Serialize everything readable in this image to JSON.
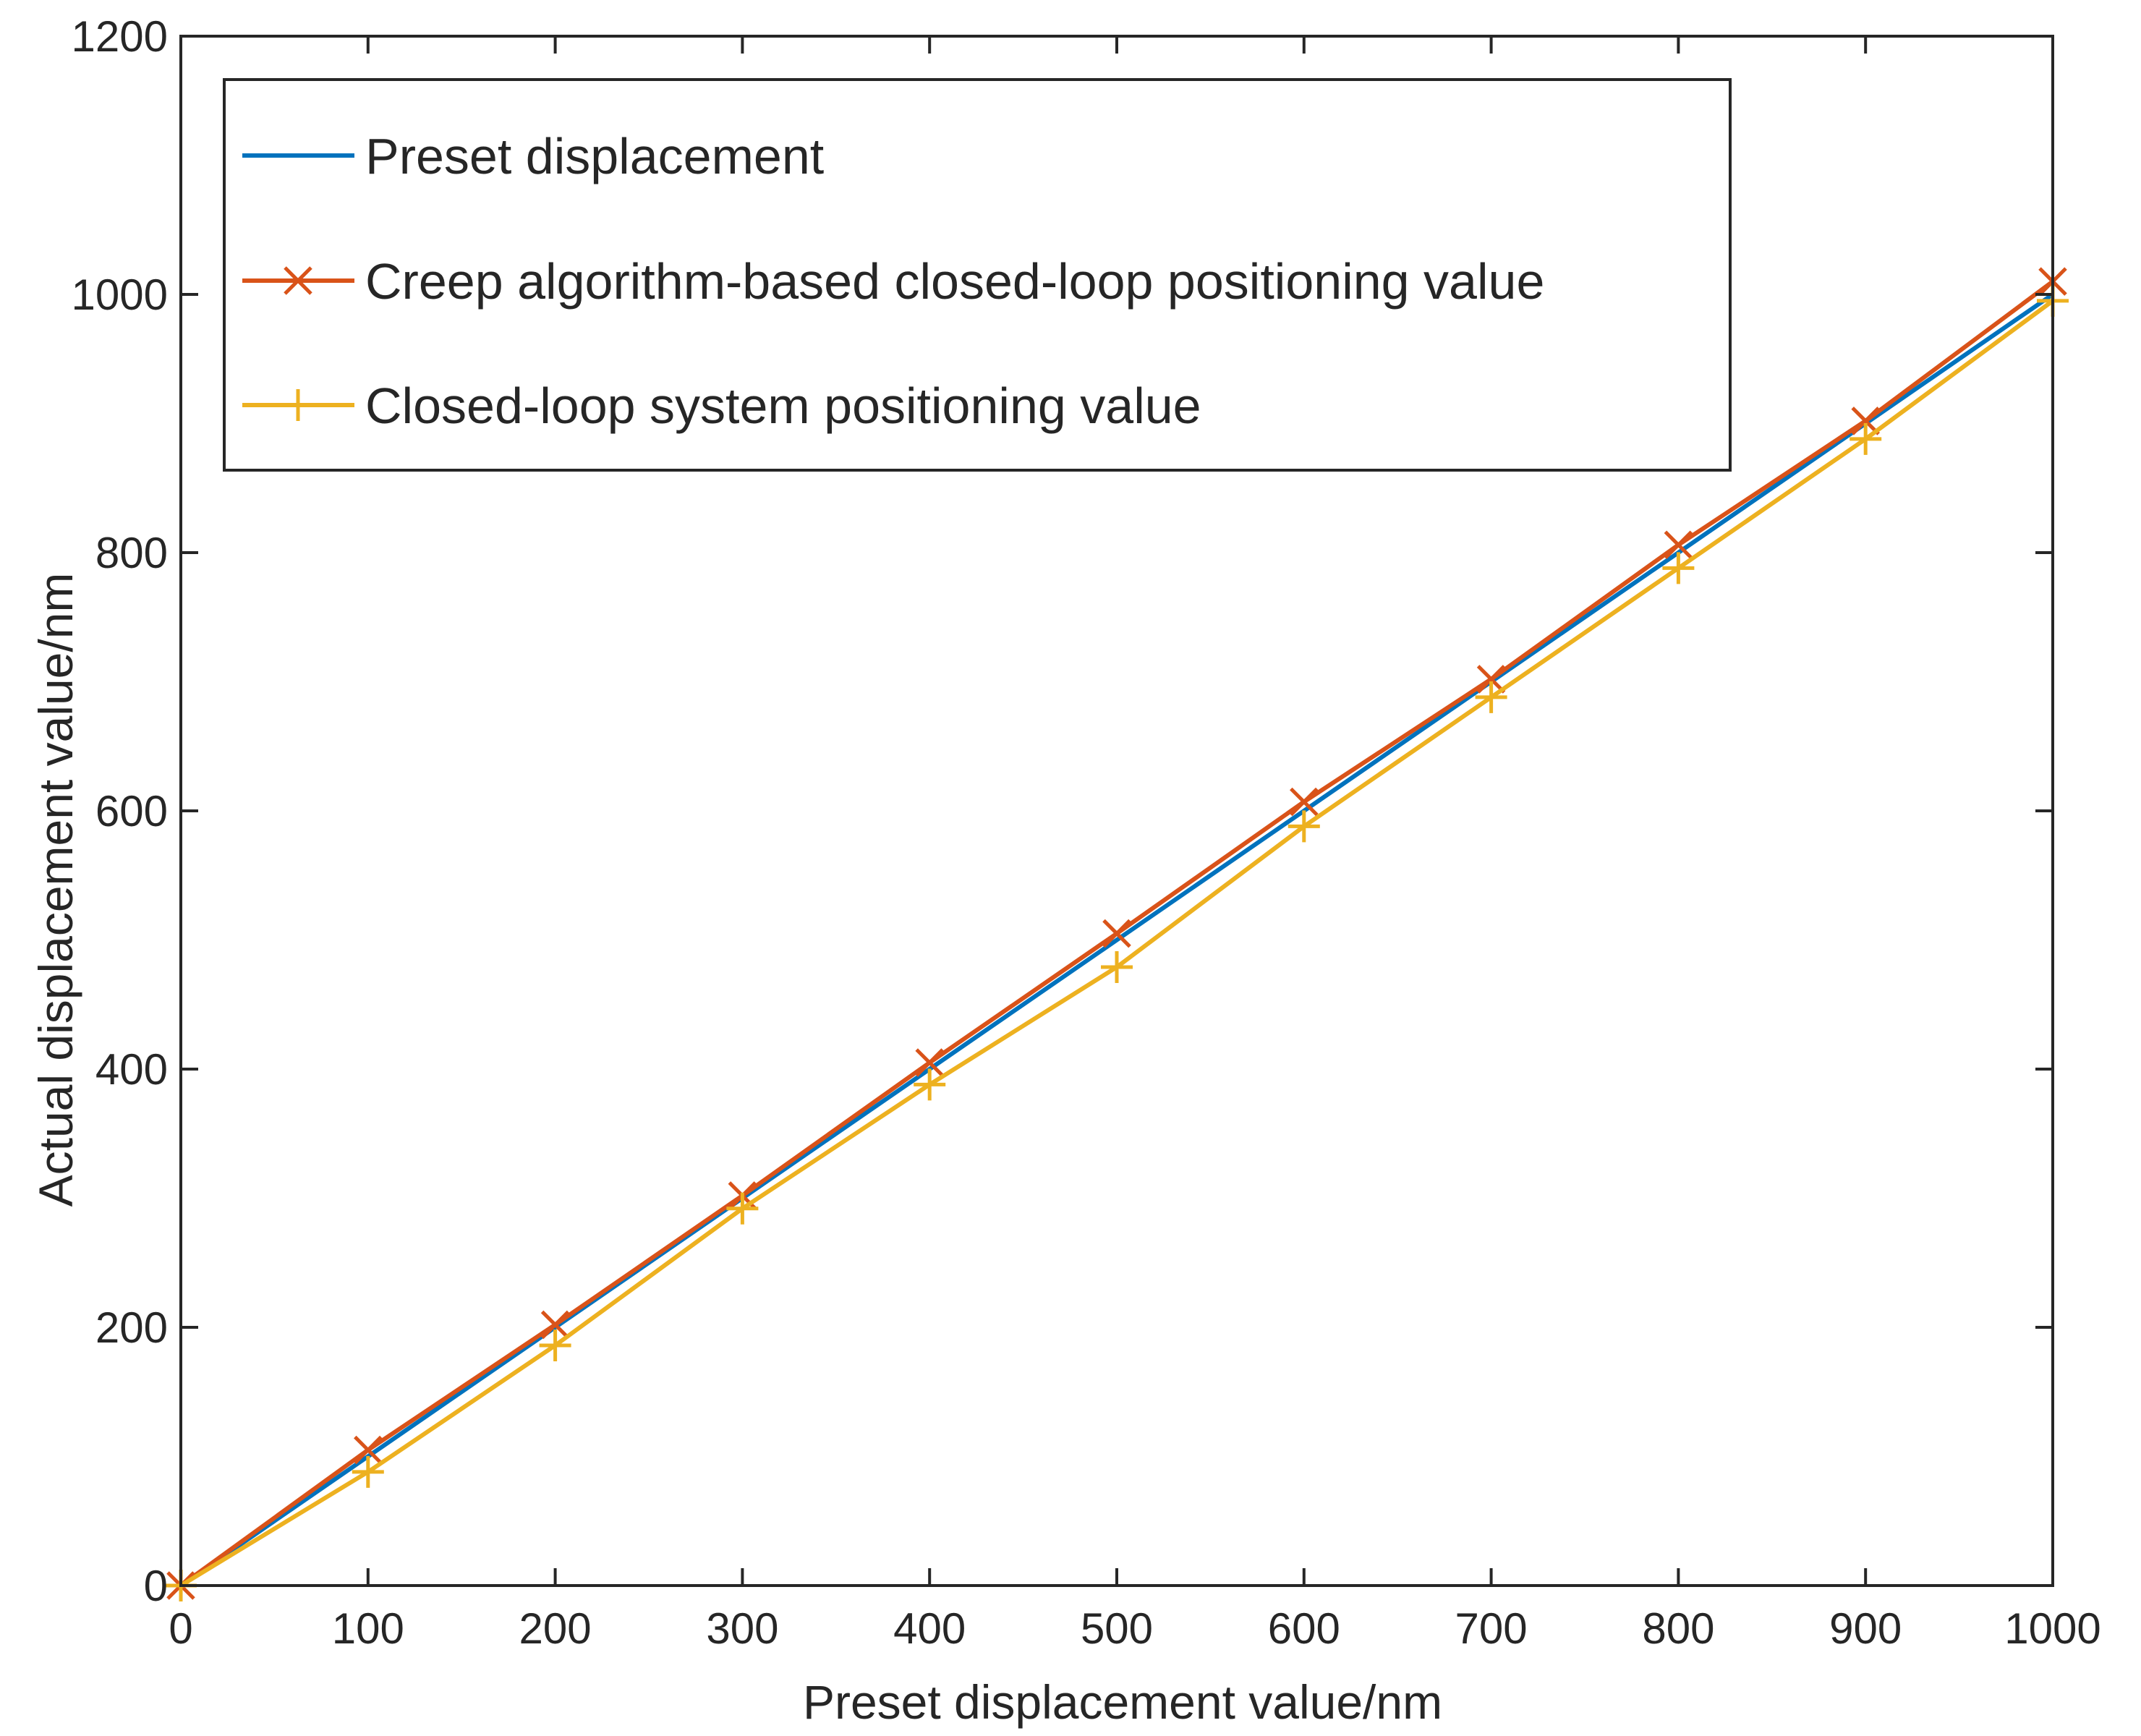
{
  "chart_data": {
    "type": "line",
    "title": "",
    "xlabel": "Preset displacement value/nm",
    "ylabel": "Actual displacement value/nm",
    "xlim": [
      0,
      1000
    ],
    "ylim": [
      0,
      1200
    ],
    "xticks": [
      0,
      100,
      200,
      300,
      400,
      500,
      600,
      700,
      800,
      900,
      1000
    ],
    "yticks": [
      0,
      200,
      400,
      600,
      800,
      1000,
      1200
    ],
    "grid": false,
    "legend_position": "top-left",
    "x": [
      0,
      100,
      200,
      300,
      400,
      500,
      600,
      700,
      800,
      900,
      1000
    ],
    "series": [
      {
        "name": "Preset displacement",
        "color": "#0072BD",
        "marker": "none",
        "values": [
          0,
          100,
          200,
          300,
          400,
          500,
          600,
          700,
          800,
          900,
          1000
        ]
      },
      {
        "name": "Creep algorithm-based closed-loop positioning value",
        "color": "#D95319",
        "marker": "x",
        "values": [
          0,
          105,
          202,
          302,
          405,
          505,
          607,
          702,
          806,
          902,
          1010
        ]
      },
      {
        "name": "Closed-loop system positioning value",
        "color": "#EDB120",
        "marker": "+",
        "values": [
          0,
          88,
          186,
          292,
          388,
          479,
          588,
          688,
          788,
          888,
          995
        ]
      }
    ]
  }
}
